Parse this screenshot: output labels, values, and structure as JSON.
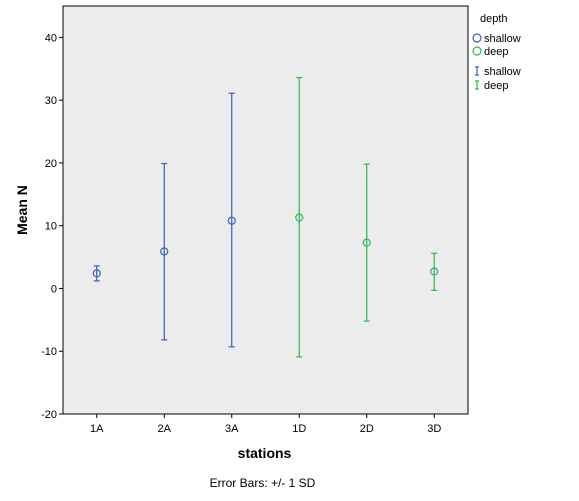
{
  "chart_data": {
    "type": "scatter",
    "xlabel": "stations",
    "ylabel": "Mean N",
    "ylim": [
      -20,
      45
    ],
    "yticks": [
      -20,
      -10,
      0,
      10,
      20,
      30,
      40
    ],
    "ytick_labels": [
      "-20",
      "-10",
      "0",
      "10",
      "20",
      "30",
      "40"
    ],
    "categories": [
      "1A",
      "2A",
      "3A",
      "1D",
      "2D",
      "3D"
    ],
    "grid": false,
    "background": "#ececec",
    "legend": {
      "title": "depth",
      "placement": "right",
      "marker_entries": [
        {
          "label": "shallow",
          "color": "#3a5ebf"
        },
        {
          "label": "deep",
          "color": "#2eb84a"
        }
      ],
      "errorbar_entries": [
        {
          "label": "shallow",
          "color": "#3a5ebf"
        },
        {
          "label": "deep",
          "color": "#2eb84a"
        }
      ]
    },
    "series": [
      {
        "name": "shallow",
        "color": "#3a5ebf",
        "categories": [
          "1A",
          "2A",
          "3A"
        ],
        "values": [
          2.4,
          5.9,
          10.8
        ],
        "err_low": [
          1.2,
          -8.2,
          -9.3
        ],
        "err_high": [
          3.6,
          19.9,
          31.1
        ]
      },
      {
        "name": "deep",
        "color": "#2eb84a",
        "categories": [
          "1D",
          "2D",
          "3D"
        ],
        "values": [
          11.3,
          7.3,
          2.7
        ],
        "err_low": [
          -10.9,
          -5.2,
          -0.3
        ],
        "err_high": [
          33.6,
          19.8,
          5.6
        ]
      }
    ],
    "footnote": "Error Bars: +/- 1 SD"
  }
}
